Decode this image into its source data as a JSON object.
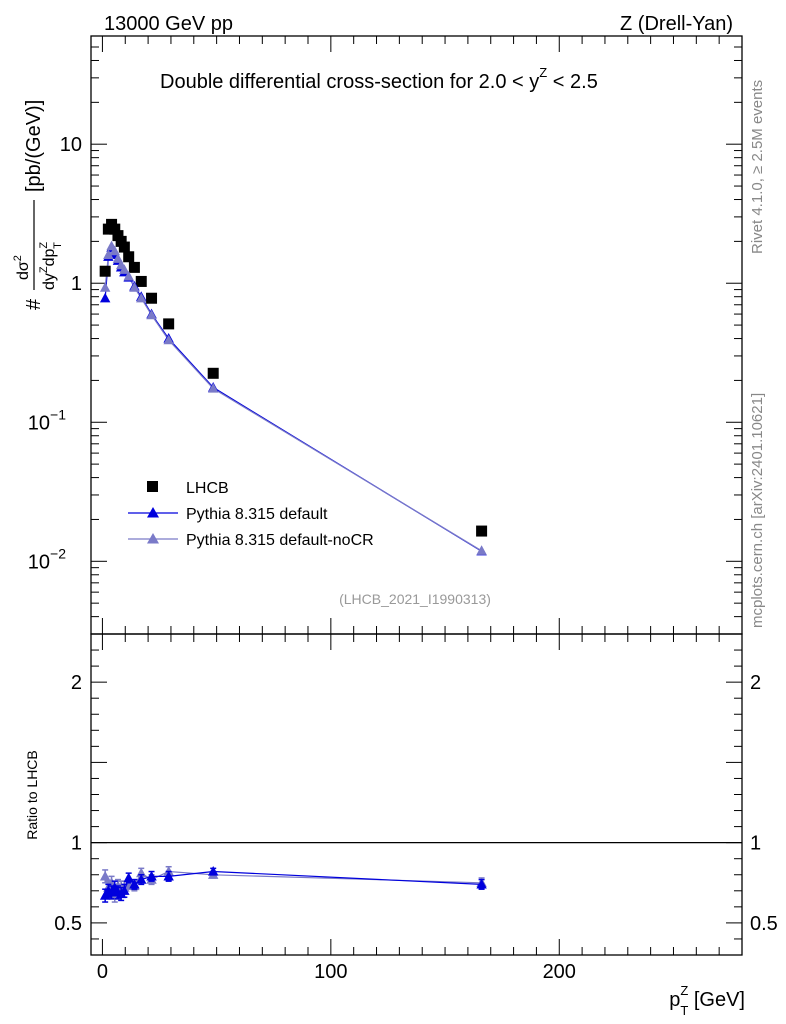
{
  "header": {
    "left": "13000 GeV pp",
    "right": "Z (Drell-Yan)"
  },
  "side_labels": {
    "rivet": "Rivet 4.1.0, ≥ 2.5M events",
    "mcplots": "mcplots.cern.ch [arXiv:2401.10621]"
  },
  "chart_data": [
    {
      "type": "scatter",
      "title": "Double differential cross-section for 2.0 < y^Z < 2.5",
      "title_main": "Double differential cross-section for 2.0 < ",
      "title_var": "y",
      "title_sup": "Z",
      "title_end": " < 2.5",
      "ylabel": "# dσ² / dy^Z dp_T^Z [pb/(GeV)]",
      "ylabel_parts": {
        "hash": "#",
        "num": "dσ",
        "num_sup": "2",
        "den_a": "dy",
        "den_a_sup": "Z",
        "den_b": "dp",
        "den_b_sup": "Z",
        "den_b_sub": "T",
        "units": "[pb/(GeV)]"
      },
      "yscale": "log",
      "ylim": [
        0.003,
        60
      ],
      "xlim": [
        -5,
        280
      ],
      "ytick_labels": [
        {
          "value": 10,
          "base": "10",
          "exp": ""
        },
        {
          "value": 1,
          "base": "1",
          "exp": ""
        },
        {
          "value": 0.1,
          "base": "10",
          "exp": "−1"
        },
        {
          "value": 0.01,
          "base": "10",
          "exp": "−2"
        }
      ],
      "watermark": "(LHCB_2021_I1990313)",
      "legend_position": "bottom-left",
      "series": [
        {
          "name": "LHCB",
          "marker": "square",
          "color": "#000000",
          "x": [
            1.2,
            2.6,
            4.0,
            5.4,
            6.8,
            8.2,
            9.6,
            11.5,
            14.0,
            17.0,
            21.5,
            29.0,
            48.5,
            166.0
          ],
          "y": [
            1.22,
            2.45,
            2.65,
            2.45,
            2.2,
            2.0,
            1.82,
            1.55,
            1.3,
            1.03,
            0.78,
            0.51,
            0.225,
            0.0165
          ]
        },
        {
          "name": "Pythia 8.315 default",
          "marker": "triangle",
          "color": "#0000dd",
          "x": [
            1.2,
            2.6,
            4.0,
            5.4,
            6.8,
            8.2,
            9.6,
            11.5,
            14.0,
            17.0,
            21.5,
            29.0,
            48.5,
            166.0
          ],
          "y": [
            0.78,
            1.55,
            1.8,
            1.6,
            1.45,
            1.3,
            1.2,
            1.1,
            0.95,
            0.8,
            0.6,
            0.4,
            0.178,
            0.0118
          ]
        },
        {
          "name": "Pythia 8.315 default-noCR",
          "marker": "triangle",
          "color": "#7a7ac8",
          "x": [
            1.2,
            2.6,
            4.0,
            5.4,
            6.8,
            8.2,
            9.6,
            11.5,
            14.0,
            17.0,
            21.5,
            29.0,
            48.5,
            166.0
          ],
          "y": [
            0.93,
            1.6,
            1.85,
            1.7,
            1.5,
            1.35,
            1.25,
            1.12,
            0.93,
            0.78,
            0.59,
            0.39,
            0.175,
            0.0119
          ]
        }
      ]
    },
    {
      "type": "scatter",
      "ylabel": "Ratio to LHCB",
      "ylim": [
        0.3,
        2.3
      ],
      "xlim": [
        -5,
        280
      ],
      "xlabel": "p_T^Z [GeV]",
      "xlabel_parts": {
        "main": "p",
        "sup": "Z",
        "sub": "T",
        "units": " [GeV]"
      },
      "xtick_labels": [
        {
          "value": 0,
          "label": "0"
        },
        {
          "value": 100,
          "label": "100"
        },
        {
          "value": 200,
          "label": "200"
        }
      ],
      "ytick_labels": [
        {
          "value": 0.5,
          "label": "0.5"
        },
        {
          "value": 1,
          "label": "1"
        },
        {
          "value": 2,
          "label": "2"
        }
      ],
      "reference_line": 1,
      "series": [
        {
          "name": "Pythia 8.315 default",
          "color": "#0000dd",
          "x": [
            1.2,
            2.6,
            4.0,
            5.4,
            6.8,
            8.2,
            9.6,
            11.5,
            14.0,
            17.0,
            21.5,
            29.0,
            48.5,
            166.0
          ],
          "y": [
            0.67,
            0.7,
            0.69,
            0.72,
            0.69,
            0.68,
            0.7,
            0.78,
            0.74,
            0.77,
            0.79,
            0.79,
            0.82,
            0.74
          ],
          "err": [
            0.04,
            0.04,
            0.04,
            0.04,
            0.04,
            0.04,
            0.04,
            0.03,
            0.03,
            0.03,
            0.03,
            0.03,
            0.02,
            0.03
          ]
        },
        {
          "name": "Pythia 8.315 default-noCR",
          "color": "#7a7ac8",
          "x": [
            1.2,
            2.6,
            4.0,
            5.4,
            6.8,
            8.2,
            9.6,
            11.5,
            14.0,
            17.0,
            21.5,
            29.0,
            48.5,
            166.0
          ],
          "y": [
            0.79,
            0.72,
            0.75,
            0.67,
            0.73,
            0.72,
            0.72,
            0.74,
            0.73,
            0.81,
            0.77,
            0.82,
            0.8,
            0.75
          ],
          "err": [
            0.04,
            0.04,
            0.04,
            0.04,
            0.04,
            0.04,
            0.04,
            0.03,
            0.03,
            0.03,
            0.03,
            0.03,
            0.02,
            0.03
          ]
        }
      ]
    }
  ]
}
